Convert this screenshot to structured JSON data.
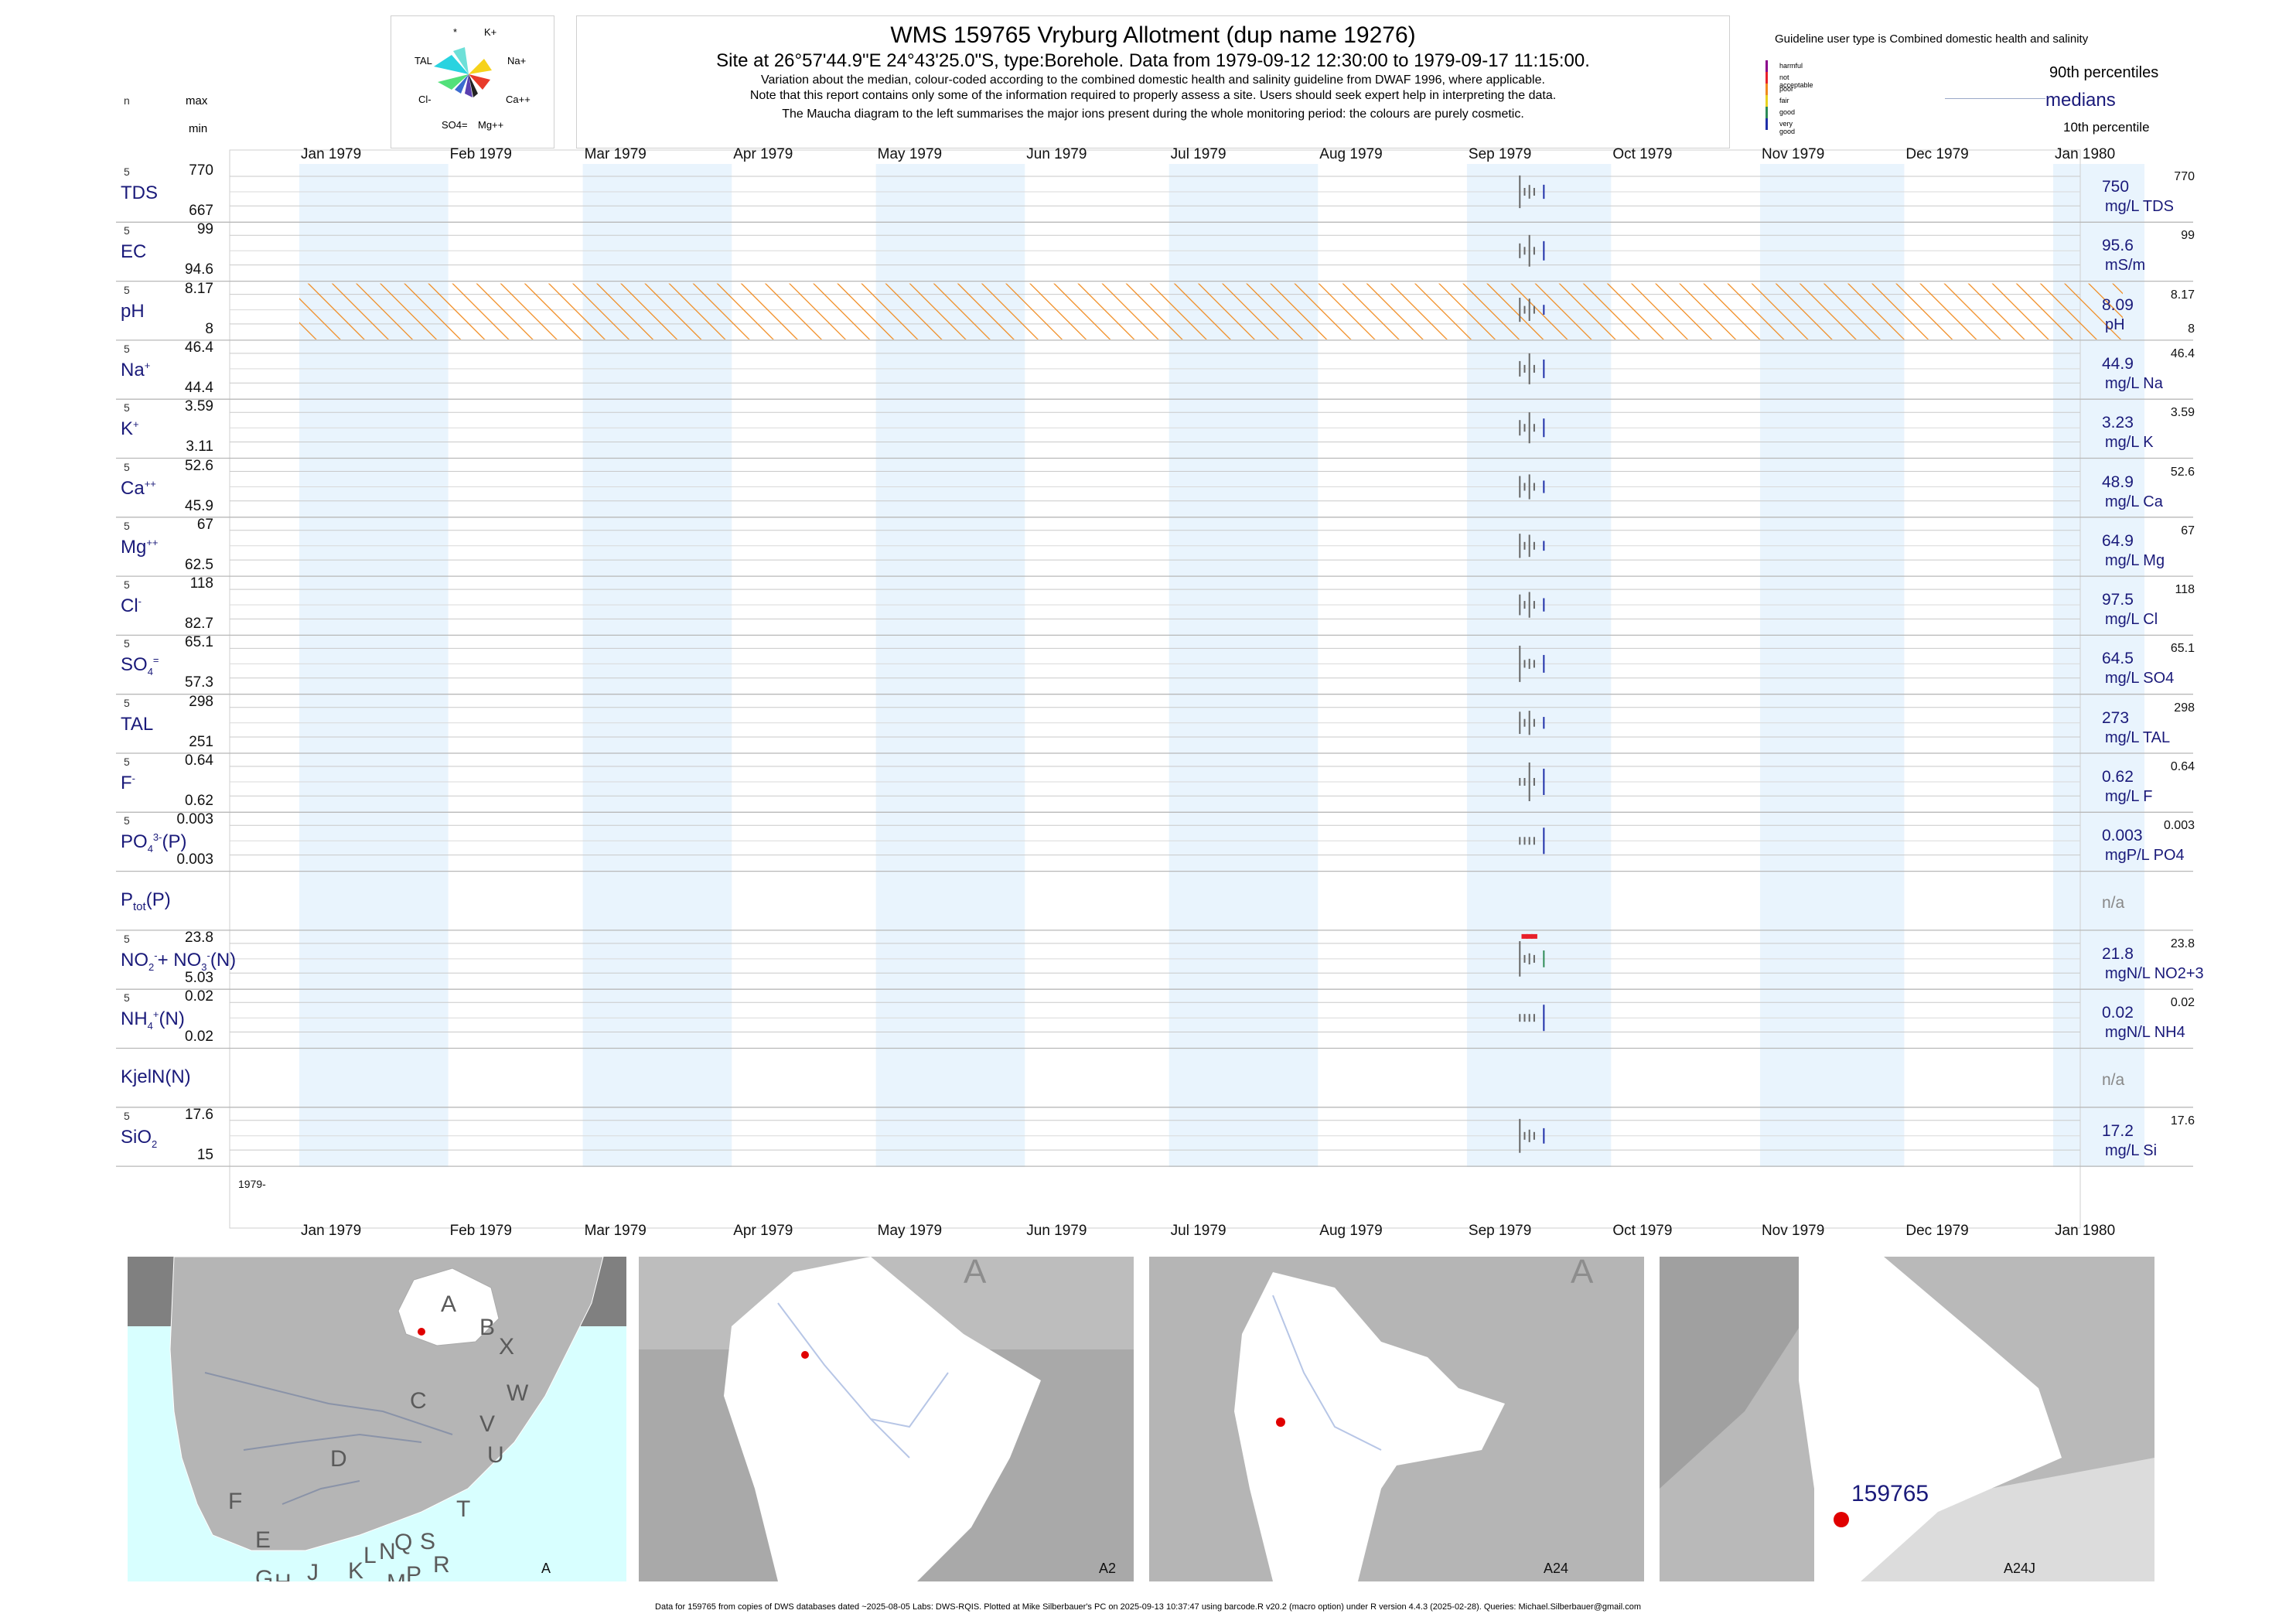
{
  "header": {
    "title": "WMS 159765  Vryburg Allotment (dup name 19276)",
    "site_line": "Site at 26°57'44.9\"E 24°43'25.0\"S, type:Borehole.  Data from 1979-09-12 12:30:00 to 1979-09-17 11:15:00.",
    "note1": "Variation about the median,  colour-coded according to the combined domestic health and salinity guideline from DWAF 1996, where applicable.",
    "note2": "Note that this report contains only some of the information required to properly assess a site. Users should seek expert help in interpreting the data.",
    "note3": "The Maucha diagram to the left summarises the major ions present during the whole monitoring period: the colours are purely cosmetic."
  },
  "maucha": {
    "labels": [
      "*",
      "K+",
      "TAL",
      "Na+",
      "Cl-",
      "Ca++",
      "SO4=",
      "Mg++"
    ]
  },
  "left_header": {
    "n": "n",
    "max": "max",
    "min": "min"
  },
  "legend": {
    "guideline": "Guideline user type is Combined domestic health and salinity",
    "categories": [
      {
        "label": "harmful",
        "color": "#8b008b"
      },
      {
        "label": "not acceptable",
        "color": "#e8202a"
      },
      {
        "label": "poor",
        "color": "#f08a1e"
      },
      {
        "label": "fair",
        "color": "#e8d21e"
      },
      {
        "label": "good",
        "color": "#2e8b57"
      },
      {
        "label": "very good",
        "color": "#1f2fa8"
      }
    ],
    "p90": "90th percentiles",
    "medians": "medians",
    "p10": "10th percentile"
  },
  "months": [
    "Jan 1979",
    "Feb 1979",
    "Mar 1979",
    "Apr 1979",
    "May 1979",
    "Jun 1979",
    "Jul 1979",
    "Aug 1979",
    "Sep 1979",
    "Oct 1979",
    "Nov 1979",
    "Dec 1979",
    "Jan 1980"
  ],
  "year_label": "1979-",
  "chart_data": {
    "type": "line",
    "title": "WMS 159765  Vryburg Allotment (dup name 19276)",
    "x_range": [
      "1979-01-01",
      "1980-01-01"
    ],
    "sample_dates": [
      "1979-09-12",
      "1979-09-13",
      "1979-09-14",
      "1979-09-15",
      "1979-09-17"
    ],
    "rows": [
      {
        "name": "TDS",
        "n": "5",
        "max": "770",
        "min": "667",
        "median": "750",
        "unit": "mg/L TDS",
        "p90": "770",
        "p10": ""
      },
      {
        "name": "EC",
        "n": "5",
        "max": "99",
        "min": "94.6",
        "median": "95.6",
        "unit": "mS/m",
        "p90": "99",
        "p10": ""
      },
      {
        "name": "pH",
        "n": "5",
        "max": "8.17",
        "min": "8",
        "median": "8.09",
        "unit": "pH",
        "p90": "8.17",
        "p10": "8"
      },
      {
        "name": "Na+",
        "n": "5",
        "max": "46.4",
        "min": "44.4",
        "median": "44.9",
        "unit": "mg/L Na",
        "p90": "46.4",
        "p10": ""
      },
      {
        "name": "K+",
        "n": "5",
        "max": "3.59",
        "min": "3.11",
        "median": "3.23",
        "unit": "mg/L K",
        "p90": "3.59",
        "p10": ""
      },
      {
        "name": "Ca++",
        "n": "5",
        "max": "52.6",
        "min": "45.9",
        "median": "48.9",
        "unit": "mg/L Ca",
        "p90": "52.6",
        "p10": ""
      },
      {
        "name": "Mg++",
        "n": "5",
        "max": "67",
        "min": "62.5",
        "median": "64.9",
        "unit": "mg/L Mg",
        "p90": "67",
        "p10": ""
      },
      {
        "name": "Cl-",
        "n": "5",
        "max": "118",
        "min": "82.7",
        "median": "97.5",
        "unit": "mg/L Cl",
        "p90": "118",
        "p10": ""
      },
      {
        "name": "SO4=",
        "n": "5",
        "max": "65.1",
        "min": "57.3",
        "median": "64.5",
        "unit": "mg/L SO4",
        "p90": "65.1",
        "p10": ""
      },
      {
        "name": "TAL",
        "n": "5",
        "max": "298",
        "min": "251",
        "median": "273",
        "unit": "mg/L TAL",
        "p90": "298",
        "p10": ""
      },
      {
        "name": "F-",
        "n": "5",
        "max": "0.64",
        "min": "0.62",
        "median": "0.62",
        "unit": "mg/L F",
        "p90": "0.64",
        "p10": ""
      },
      {
        "name": "PO4(3-)(P)",
        "n": "5",
        "max": "0.003",
        "min": "0.003",
        "median": "0.003",
        "unit": "mgP/L PO4",
        "p90": "0.003",
        "p10": ""
      },
      {
        "name": "Ptot(P)",
        "n": "",
        "max": "",
        "min": "",
        "median": "n/a",
        "unit": "",
        "p90": "",
        "p10": ""
      },
      {
        "name": "NO2-+NO3-(N)",
        "n": "5",
        "max": "23.8",
        "min": "5.03",
        "median": "21.8",
        "unit": "mgN/L NO2+3",
        "p90": "23.8",
        "p10": ""
      },
      {
        "name": "NH4+(N)",
        "n": "5",
        "max": "0.02",
        "min": "0.02",
        "median": "0.02",
        "unit": "mgN/L NH4",
        "p90": "0.02",
        "p10": ""
      },
      {
        "name": "KjelN(N)",
        "n": "",
        "max": "",
        "min": "",
        "median": "n/a",
        "unit": "",
        "p90": "",
        "p10": ""
      },
      {
        "name": "SiO2",
        "n": "5",
        "max": "17.6",
        "min": "15",
        "median": "17.2",
        "unit": "mg/L Si",
        "p90": "17.6",
        "p10": ""
      }
    ]
  },
  "maps": {
    "m1_label": "A",
    "m1_letters": [
      "A",
      "B",
      "X",
      "W",
      "C",
      "D",
      "V",
      "U",
      "T",
      "F",
      "E",
      "G",
      "H",
      "J",
      "K",
      "L",
      "N",
      "M",
      "P",
      "Q",
      "S",
      "R"
    ],
    "m2_label": "A2",
    "m2_corner": "A",
    "m3_label": "A24",
    "m3_corner": "A",
    "m4_label": "A24J",
    "site_id": "159765"
  },
  "footer": "Data for 159765 from copies of DWS databases dated ~2025-08-05 Labs: DWS-RQIS. Plotted at Mike Silberbauer's PC on 2025-09-13 10:37:47 using barcode.R v20.2 (macro option) under R version 4.4.3 (2025-02-28). Queries: Michael.Silberbauer@gmail.com"
}
